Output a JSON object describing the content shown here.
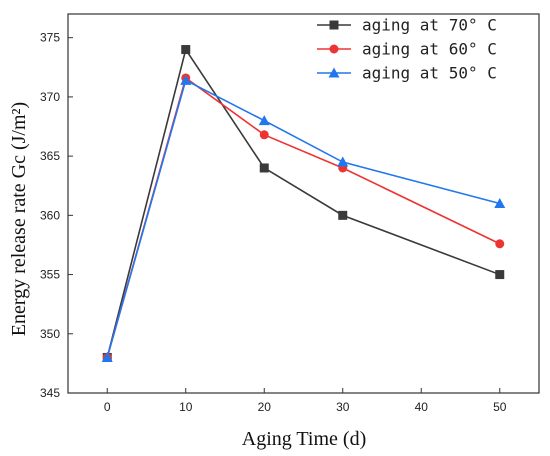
{
  "chart_data": {
    "type": "line",
    "title": "",
    "xlabel": "Aging Time (d)",
    "ylabel": "Energy release rate Gc (J/m²)",
    "x": [
      0,
      10,
      20,
      30,
      50
    ],
    "xlim": [
      -5,
      55
    ],
    "ylim": [
      345,
      377
    ],
    "xticks": [
      0,
      10,
      20,
      30,
      40,
      50
    ],
    "yticks": [
      345,
      350,
      355,
      360,
      365,
      370,
      375
    ],
    "grid": false,
    "legend_position": "top-right",
    "series": [
      {
        "name": "aging at 70° C",
        "color": "#3a3a3a",
        "marker": "square",
        "values": [
          348,
          374,
          364,
          360,
          355
        ]
      },
      {
        "name": "aging at 60° C",
        "color": "#ee3333",
        "marker": "circle",
        "values": [
          348,
          371.6,
          366.8,
          364,
          357.6
        ]
      },
      {
        "name": "aging at 50° C",
        "color": "#2277ee",
        "marker": "triangle",
        "values": [
          348,
          371.4,
          368,
          364.5,
          361
        ]
      }
    ]
  }
}
